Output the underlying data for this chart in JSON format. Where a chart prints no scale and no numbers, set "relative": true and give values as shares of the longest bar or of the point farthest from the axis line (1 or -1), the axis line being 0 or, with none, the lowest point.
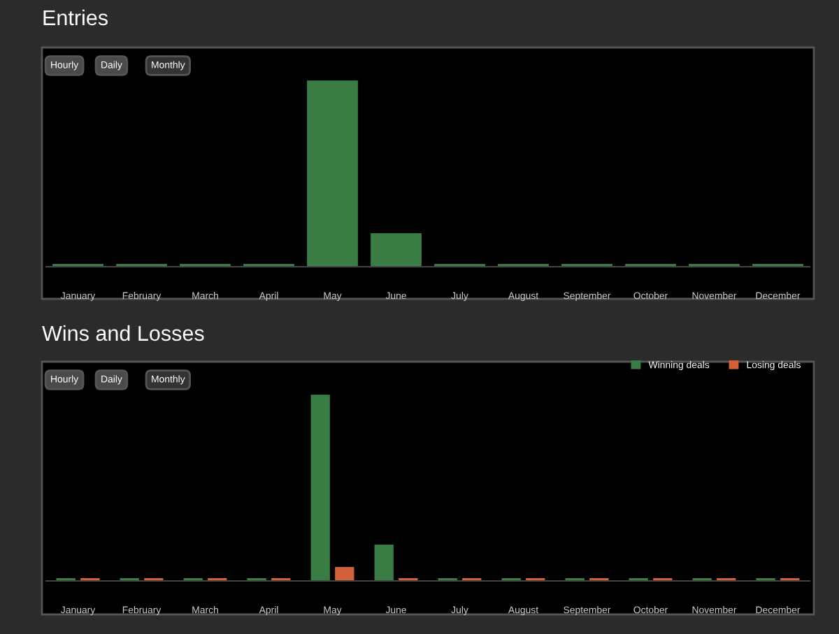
{
  "chart_data": [
    {
      "type": "bar",
      "title": "Entries",
      "relative": true,
      "annotations": [
        "Hourly",
        "Daily",
        "Monthly"
      ],
      "categories": [
        "January",
        "February",
        "March",
        "April",
        "May",
        "June",
        "July",
        "August",
        "September",
        "October",
        "November",
        "December"
      ],
      "series": [
        {
          "color": "#3a7d44",
          "values": [
            0.015,
            0.015,
            0.015,
            0.015,
            1,
            0.18,
            0.015,
            0.015,
            0.015,
            0.015,
            0.015,
            0.015
          ]
        }
      ]
    },
    {
      "type": "bar",
      "title": "Wins and Losses",
      "relative": true,
      "legend": "top right",
      "annotations": [
        "Hourly",
        "Daily",
        "Monthly"
      ],
      "categories": [
        "January",
        "February",
        "March",
        "April",
        "May",
        "June",
        "July",
        "August",
        "September",
        "October",
        "November",
        "December"
      ],
      "series": [
        {
          "name": "Winning deals",
          "color": "#3a7d44",
          "values": [
            0.015,
            0.015,
            0.015,
            0.015,
            1,
            0.195,
            0.015,
            0.015,
            0.015,
            0.015,
            0.015,
            0.015
          ]
        },
        {
          "name": "Losing deals",
          "color": "#d2603a",
          "values": [
            0.015,
            0.015,
            0.015,
            0.015,
            0.075,
            0.015,
            0.015,
            0.015,
            0.015,
            0.015,
            0.015,
            0.015
          ]
        }
      ]
    }
  ]
}
